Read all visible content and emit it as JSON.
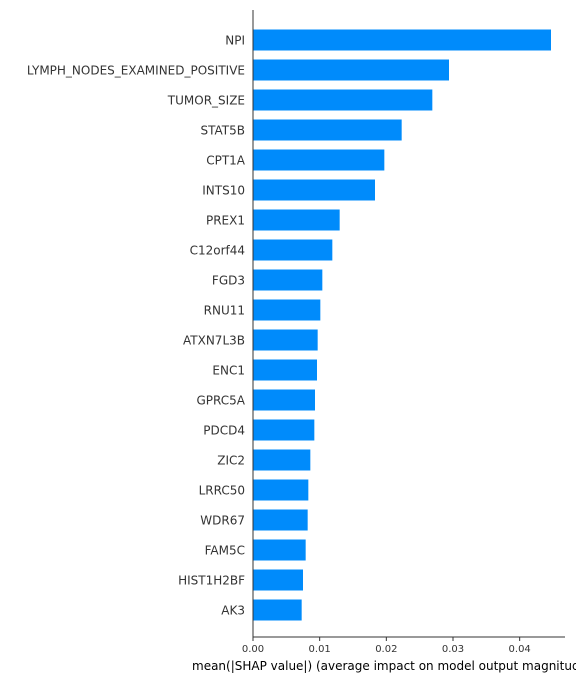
{
  "chart_data": {
    "type": "bar",
    "orientation": "horizontal",
    "categories": [
      "NPI",
      "LYMPH_NODES_EXAMINED_POSITIVE",
      "TUMOR_SIZE",
      "STAT5B",
      "CPT1A",
      "INTS10",
      "PREX1",
      "C12orf44",
      "FGD3",
      "RNU11",
      "ATXN7L3B",
      "ENC1",
      "GPRC5A",
      "PDCD4",
      "ZIC2",
      "LRRC50",
      "WDR67",
      "FAM5C",
      "HIST1H2BF",
      "AK3"
    ],
    "values": [
      0.0447,
      0.0294,
      0.0269,
      0.0223,
      0.0197,
      0.0183,
      0.013,
      0.0119,
      0.0104,
      0.0101,
      0.0097,
      0.0096,
      0.0093,
      0.0092,
      0.0086,
      0.0083,
      0.0082,
      0.0079,
      0.0075,
      0.0073
    ],
    "xlabel": "mean(|SHAP value|) (average impact on model output magnitude)",
    "ylabel": "",
    "title": "",
    "xlim": [
      0,
      0.0468
    ],
    "xticks": [
      "0.00",
      "0.01",
      "0.02",
      "0.03",
      "0.04"
    ],
    "xtick_values": [
      0,
      0.01,
      0.02,
      0.03,
      0.04
    ],
    "bar_color": "#008bfb",
    "grid": false,
    "legend": "none"
  }
}
